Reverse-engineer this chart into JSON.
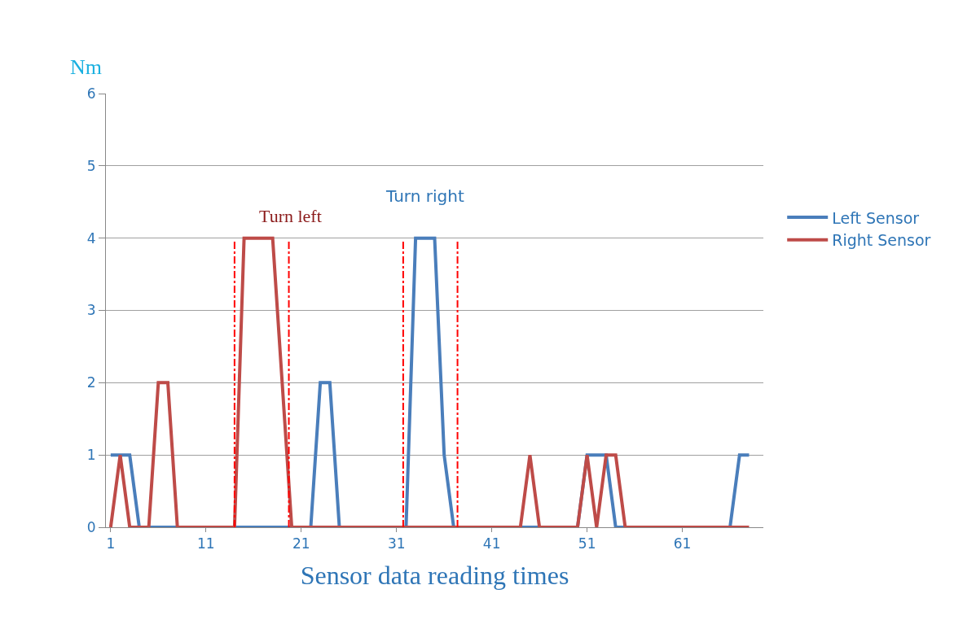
{
  "chart_data": {
    "type": "line",
    "x": [
      1,
      2,
      3,
      4,
      5,
      6,
      7,
      8,
      9,
      10,
      11,
      12,
      13,
      14,
      15,
      16,
      17,
      18,
      19,
      20,
      21,
      22,
      23,
      24,
      25,
      26,
      27,
      28,
      29,
      30,
      31,
      32,
      33,
      34,
      35,
      36,
      37,
      38,
      39,
      40,
      41,
      42,
      43,
      44,
      45,
      46,
      47,
      48,
      49,
      50,
      51,
      52,
      53,
      54,
      55,
      56,
      57,
      58,
      59,
      60,
      61,
      62,
      63,
      64,
      65,
      66,
      67,
      68
    ],
    "series": [
      {
        "name": "Left Sensor",
        "color": "#4a7ebb",
        "values": [
          1,
          1,
          1,
          0,
          0,
          0,
          0,
          0,
          0,
          0,
          0,
          0,
          0,
          0,
          0,
          0,
          0,
          0,
          0,
          0,
          0,
          0,
          2,
          2,
          0,
          0,
          0,
          0,
          0,
          0,
          0,
          0,
          4,
          4,
          4,
          1,
          0,
          0,
          0,
          0,
          0,
          0,
          0,
          0,
          0,
          0,
          0,
          0,
          0,
          0,
          1,
          1,
          1,
          0,
          0,
          0,
          0,
          0,
          0,
          0,
          0,
          0,
          0,
          0,
          0,
          0,
          1,
          1
        ]
      },
      {
        "name": "Right Sensor",
        "color": "#be4b48",
        "values": [
          0,
          1,
          0,
          0,
          0,
          2,
          2,
          0,
          0,
          0,
          0,
          0,
          0,
          0,
          4,
          4,
          4,
          4,
          2,
          0,
          0,
          0,
          0,
          0,
          0,
          0,
          0,
          0,
          0,
          0,
          0,
          0,
          0,
          0,
          0,
          0,
          0,
          0,
          0,
          0,
          0,
          0,
          0,
          0,
          1,
          0,
          0,
          0,
          0,
          0,
          1,
          0,
          1,
          1,
          0,
          0,
          0,
          0,
          0,
          0,
          0,
          0,
          0,
          0,
          0,
          0,
          0,
          0
        ]
      }
    ],
    "xlabel": "Sensor data reading times",
    "ylabel": "Nm",
    "xlim": [
      0.5,
      69.5
    ],
    "xticks": [
      1,
      11,
      21,
      31,
      41,
      51,
      61
    ],
    "ylim": [
      0,
      6
    ],
    "yticks": [
      0,
      1,
      2,
      3,
      4,
      5,
      6
    ],
    "grid": "y",
    "legend": "right",
    "ref_lines": [
      {
        "axis": "x",
        "value": 14.0,
        "color": "#ff0000",
        "line_style": "dashdot"
      },
      {
        "axis": "x",
        "value": 19.7,
        "color": "#ff0000",
        "line_style": "dashdot"
      },
      {
        "axis": "x",
        "value": 31.7,
        "color": "#ff0000",
        "line_style": "dashdot"
      },
      {
        "axis": "x",
        "value": 37.4,
        "color": "#ff0000",
        "line_style": "dashdot"
      }
    ],
    "annotations": [
      "Turn left",
      "Turn right"
    ]
  }
}
